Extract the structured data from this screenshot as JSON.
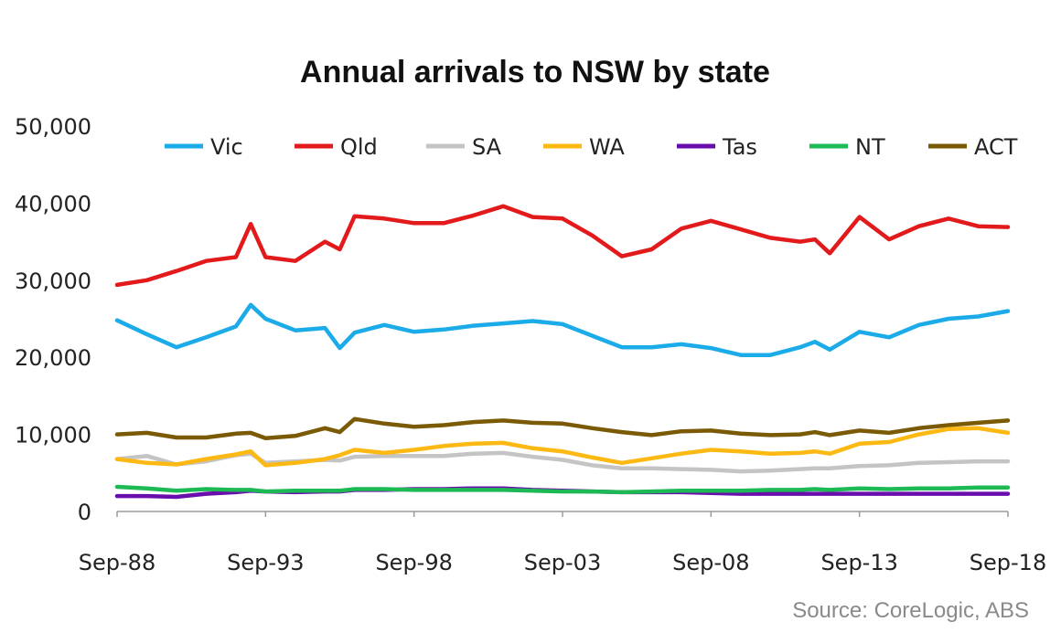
{
  "chart_data": {
    "type": "line",
    "title": "Annual arrivals to NSW by state",
    "source": "Source: CoreLogic, ABS",
    "xlabel": "",
    "ylabel": "",
    "ylim": [
      0,
      50000
    ],
    "yticks": [
      "0",
      "10,000",
      "20,000",
      "30,000",
      "40,000",
      "50,000"
    ],
    "xticks": [
      "Sep-88",
      "Sep-93",
      "Sep-98",
      "Sep-03",
      "Sep-08",
      "Sep-13",
      "Sep-18"
    ],
    "grid": false,
    "legend_position": "top",
    "x": [
      1988.75,
      1989.75,
      1990.75,
      1991.75,
      1992.75,
      1993.25,
      1993.75,
      1994.75,
      1995.75,
      1996.25,
      1996.75,
      1997.75,
      1998.75,
      1999.75,
      2000.75,
      2001.75,
      2002.75,
      2003.75,
      2004.75,
      2005.75,
      2006.75,
      2007.75,
      2008.75,
      2009.75,
      2010.75,
      2011.75,
      2012.25,
      2012.75,
      2013.75,
      2014.75,
      2015.75,
      2016.75,
      2017.75,
      2018.75
    ],
    "series": [
      {
        "name": "Vic",
        "color": "#1aabe8",
        "values": [
          24800,
          23000,
          21300,
          22600,
          24000,
          26800,
          25000,
          23500,
          23800,
          21200,
          23200,
          24200,
          23300,
          23600,
          24100,
          24400,
          24700,
          24300,
          22800,
          21300,
          21300,
          21700,
          21200,
          20300,
          20300,
          21300,
          22000,
          21000,
          23300,
          22600,
          24200,
          25000,
          25300,
          26000
        ]
      },
      {
        "name": "Qld",
        "color": "#e31a1c",
        "values": [
          29400,
          30000,
          31200,
          32500,
          33000,
          37300,
          33000,
          32500,
          35000,
          34000,
          38300,
          38000,
          37400,
          37400,
          38400,
          39600,
          38200,
          38000,
          35800,
          33100,
          34000,
          36700,
          37700,
          36600,
          35500,
          35000,
          35300,
          33500,
          38200,
          35300,
          37000,
          38000,
          37000,
          36900
        ]
      },
      {
        "name": "SA",
        "color": "#c4c4c4",
        "values": [
          6800,
          7200,
          6100,
          6500,
          7300,
          7500,
          6300,
          6500,
          6700,
          6600,
          7100,
          7200,
          7200,
          7200,
          7500,
          7600,
          7100,
          6700,
          6000,
          5600,
          5600,
          5500,
          5400,
          5200,
          5300,
          5500,
          5600,
          5600,
          5900,
          6000,
          6300,
          6400,
          6500,
          6500
        ]
      },
      {
        "name": "WA",
        "color": "#fcb813",
        "values": [
          6800,
          6300,
          6100,
          6800,
          7400,
          7800,
          6000,
          6300,
          6800,
          7300,
          8000,
          7600,
          8000,
          8500,
          8800,
          8900,
          8200,
          7800,
          7000,
          6300,
          6900,
          7500,
          8000,
          7800,
          7500,
          7600,
          7800,
          7500,
          8800,
          9000,
          10000,
          10700,
          10800,
          10200
        ]
      },
      {
        "name": "Tas",
        "color": "#6a0dad",
        "values": [
          2000,
          2000,
          1900,
          2300,
          2500,
          2700,
          2600,
          2500,
          2600,
          2600,
          2800,
          2800,
          2900,
          2900,
          3000,
          3000,
          2800,
          2700,
          2600,
          2500,
          2500,
          2500,
          2400,
          2300,
          2300,
          2300,
          2300,
          2300,
          2300,
          2300,
          2300,
          2300,
          2300,
          2300
        ]
      },
      {
        "name": "NT",
        "color": "#1db954",
        "values": [
          3200,
          3000,
          2700,
          2900,
          2800,
          2800,
          2600,
          2700,
          2700,
          2700,
          2900,
          2900,
          2800,
          2800,
          2800,
          2800,
          2700,
          2600,
          2600,
          2500,
          2600,
          2700,
          2700,
          2700,
          2800,
          2800,
          2900,
          2800,
          3000,
          2900,
          3000,
          3000,
          3100,
          3100
        ]
      },
      {
        "name": "ACT",
        "color": "#7b5a06",
        "values": [
          10000,
          10200,
          9600,
          9600,
          10100,
          10200,
          9500,
          9800,
          10800,
          10300,
          12000,
          11400,
          11000,
          11200,
          11600,
          11800,
          11500,
          11400,
          10800,
          10300,
          9900,
          10400,
          10500,
          10100,
          9900,
          10000,
          10300,
          9900,
          10500,
          10200,
          10800,
          11200,
          11500,
          11800
        ]
      }
    ]
  }
}
